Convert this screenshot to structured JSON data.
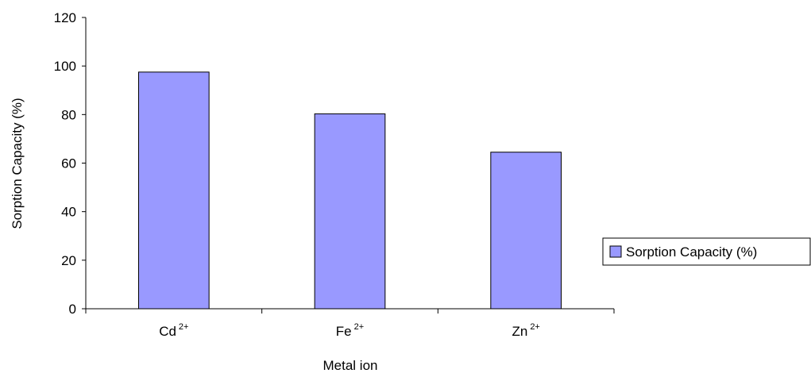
{
  "chart_data": {
    "type": "bar",
    "categories": [
      {
        "base": "Cd",
        "sup": "2+"
      },
      {
        "base": "Fe",
        "sup": "2+"
      },
      {
        "base": "Zn",
        "sup": "2+"
      }
    ],
    "series": [
      {
        "name": "Sorption Capacity (%)",
        "values": [
          97.5,
          80.3,
          64.5
        ],
        "color": "#9999FF"
      }
    ],
    "xlabel": "Metal ion",
    "ylabel": "Sorption Capacity (%)",
    "ylim": [
      0,
      120
    ],
    "yticks": [
      "0",
      "20",
      "40",
      "60",
      "80",
      "100",
      "120"
    ],
    "grid": false,
    "legend_position": "right"
  }
}
